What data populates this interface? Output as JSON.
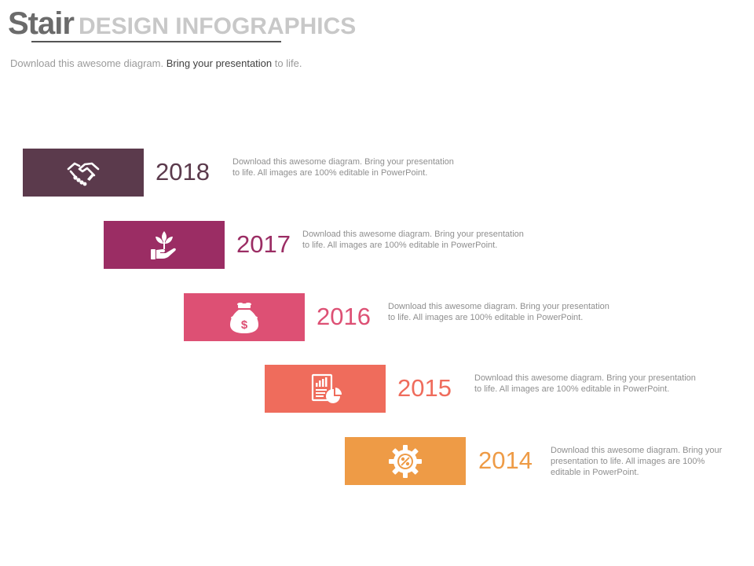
{
  "header": {
    "title_main": "Stair",
    "title_sub": "DESIGN INFOGRAPHICS",
    "subtitle_part1": "Download this awesome diagram. ",
    "subtitle_part2": "Bring your presentation",
    "subtitle_part3": " to life."
  },
  "steps": [
    {
      "year": "2018",
      "icon": "handshake-icon",
      "color": "#5b3a4c",
      "text": "Download this awesome diagram. Bring your presentation to life. All images are 100% editable in PowerPoint."
    },
    {
      "year": "2017",
      "icon": "plant-in-hand-icon",
      "color": "#9b2d64",
      "text": "Download this awesome diagram. Bring your presentation to life. All images are 100% editable in PowerPoint."
    },
    {
      "year": "2016",
      "icon": "money-bag-icon",
      "color": "#dd5074",
      "text": "Download this awesome diagram. Bring your presentation to life. All images are 100% editable in PowerPoint."
    },
    {
      "year": "2015",
      "icon": "report-chart-icon",
      "color": "#ef6c5c",
      "text": "Download this awesome diagram. Bring your presentation to life. All images are 100% editable in PowerPoint."
    },
    {
      "year": "2014",
      "icon": "gear-percent-icon",
      "color": "#ee9b46",
      "text": "Download this awesome diagram. Bring your presentation to life. All images are 100% editable in PowerPoint."
    }
  ]
}
